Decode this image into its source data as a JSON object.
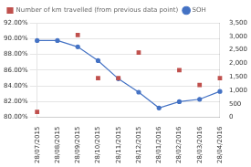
{
  "chart_data": {
    "type": "line",
    "categories": [
      "28/07/2015",
      "28/08/2015",
      "28/09/2015",
      "28/10/2015",
      "28/11/2015",
      "28/12/2015",
      "28/01/2016",
      "28/02/2016",
      "28/03/2016",
      "28/04/2016"
    ],
    "series": [
      {
        "name": "SOH",
        "type": "line",
        "marker": "circle",
        "color": "#4472C4",
        "values": [
          0.8975,
          0.8975,
          0.8895,
          0.872,
          0.849,
          0.832,
          0.812,
          0.82,
          0.823,
          0.833
        ]
      },
      {
        "name": "Number of km travelled (from previous data point)",
        "type": "scatter",
        "marker": "square",
        "color": "#C0504D",
        "axis": "y2",
        "values": [
          200,
          null,
          3050,
          1450,
          1450,
          2400,
          null,
          1750,
          1200,
          1450
        ]
      }
    ],
    "ylim": [
      0.8,
      0.92
    ],
    "yticks": [
      {
        "value": 0.8,
        "label": "80.00%"
      },
      {
        "value": 0.82,
        "label": "82.00%"
      },
      {
        "value": 0.84,
        "label": "84.00%"
      },
      {
        "value": 0.86,
        "label": "86.00%"
      },
      {
        "value": 0.88,
        "label": "88.00%"
      },
      {
        "value": 0.9,
        "label": "90.00%"
      },
      {
        "value": 0.92,
        "label": "92.00%"
      }
    ],
    "y2lim": [
      0,
      3500
    ],
    "y2ticks": [
      0,
      500,
      {
        "value": 1000,
        "label": "1,000"
      },
      {
        "value": 1500,
        "label": "1,500"
      },
      {
        "value": 2000,
        "label": "2,000"
      },
      {
        "value": 2500,
        "label": "2,500"
      },
      {
        "value": 3000,
        "label": "3,000"
      },
      {
        "value": 3500,
        "label": "3,500"
      }
    ],
    "grid": "y",
    "legend": "upper left"
  }
}
